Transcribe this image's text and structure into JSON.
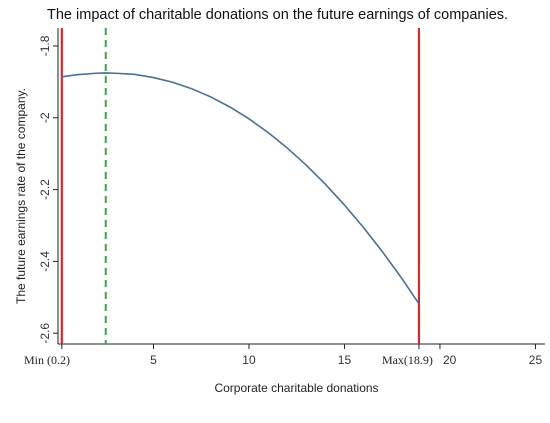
{
  "chart_data": {
    "type": "line",
    "title": "The impact of charitable donations on the future earnings of companies.",
    "xlabel": "Corporate charitable donations",
    "ylabel": "The future earnings rate of the company.",
    "xlim": [
      0,
      25.5
    ],
    "ylim": [
      -2.63,
      -1.75
    ],
    "x_ticks": [
      {
        "value": 0.2,
        "label": "Min (0.2)"
      },
      {
        "value": 5,
        "label": "5"
      },
      {
        "value": 10,
        "label": "10"
      },
      {
        "value": 15,
        "label": "15"
      },
      {
        "value": 18.9,
        "label": "Max(18.9)"
      },
      {
        "value": 20,
        "label": "20"
      },
      {
        "value": 25,
        "label": "25"
      }
    ],
    "y_ticks": [
      {
        "value": -1.8,
        "label": "-1.8"
      },
      {
        "value": -2.0,
        "label": "-2"
      },
      {
        "value": -2.2,
        "label": "-2.2"
      },
      {
        "value": -2.4,
        "label": "-2.4"
      },
      {
        "value": -2.6,
        "label": "-2.6"
      }
    ],
    "series": [
      {
        "color": "#4a6f8f",
        "x": [
          0.2,
          1.0,
          2.0,
          2.5,
          3.0,
          4.0,
          5.0,
          6.0,
          7.0,
          8.0,
          9.0,
          10.0,
          11.0,
          12.0,
          13.0,
          14.0,
          15.0,
          16.0,
          17.0,
          18.0,
          18.9
        ],
        "y": [
          -1.886,
          -1.88,
          -1.876,
          -1.875,
          -1.876,
          -1.879,
          -1.888,
          -1.901,
          -1.919,
          -1.942,
          -1.97,
          -2.003,
          -2.041,
          -2.084,
          -2.132,
          -2.185,
          -2.243,
          -2.306,
          -2.374,
          -2.447,
          -2.518
        ]
      }
    ],
    "reference_lines": [
      {
        "x": 0.2,
        "style": "solid",
        "color": "#d6282c"
      },
      {
        "x": 18.9,
        "style": "solid",
        "color": "#d6282c"
      },
      {
        "x": 2.5,
        "style": "dashed",
        "color": "#3aa64a"
      }
    ],
    "grid": false,
    "legend": "none"
  }
}
